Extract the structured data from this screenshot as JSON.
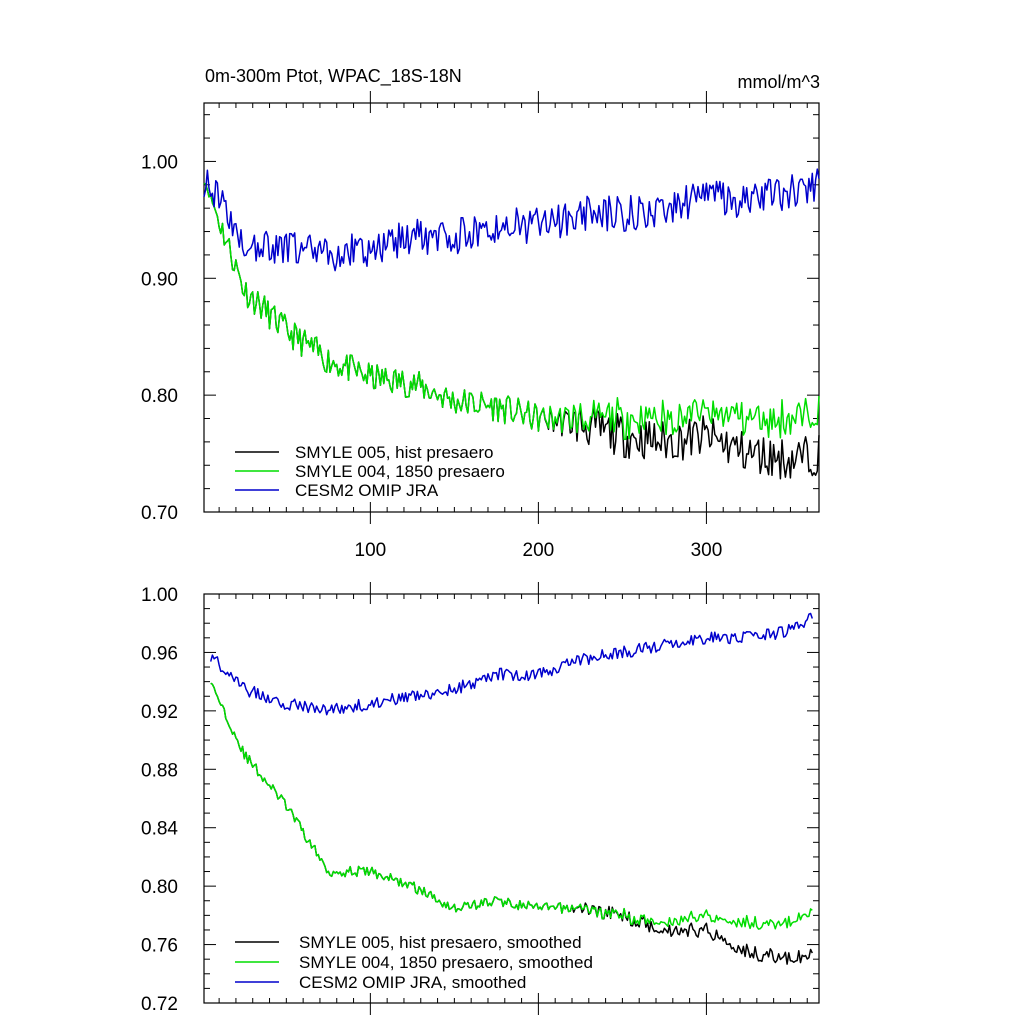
{
  "chart_data": [
    {
      "type": "line",
      "title": "0m-300m Ptot, WPAC_18S-18N",
      "units": "mmol/m^3",
      "xlim": [
        1,
        367
      ],
      "ylim": [
        0.7,
        1.05
      ],
      "xticks": [
        100,
        200,
        300
      ],
      "xtick_labels": [
        "100",
        "200",
        "300"
      ],
      "yticks": [
        0.7,
        0.8,
        0.9,
        1.0
      ],
      "ytick_labels": [
        "0.70",
        "0.80",
        "0.90",
        "1.00"
      ],
      "grid": false,
      "legend_position": "bottom-left",
      "series": [
        {
          "name": "SMYLE 005, hist presaero",
          "color": "#000000",
          "x": [
            1,
            25,
            50,
            75,
            100,
            125,
            150,
            175,
            200,
            225,
            250,
            275,
            300,
            325,
            350,
            367
          ],
          "y": [
            0.985,
            0.89,
            0.855,
            0.83,
            0.815,
            0.81,
            0.795,
            0.79,
            0.78,
            0.775,
            0.765,
            0.76,
            0.765,
            0.75,
            0.745,
            0.75
          ]
        },
        {
          "name": "SMYLE 004, 1850 presaero",
          "color": "#00dd00",
          "x": [
            1,
            25,
            50,
            75,
            100,
            125,
            150,
            175,
            200,
            225,
            250,
            275,
            300,
            325,
            350,
            367
          ],
          "y": [
            0.985,
            0.89,
            0.855,
            0.83,
            0.815,
            0.81,
            0.795,
            0.79,
            0.78,
            0.78,
            0.78,
            0.78,
            0.785,
            0.78,
            0.78,
            0.785
          ]
        },
        {
          "name": "CESM2 OMIP JRA",
          "color": "#0000cc",
          "x": [
            1,
            25,
            50,
            75,
            100,
            125,
            150,
            175,
            200,
            225,
            250,
            275,
            300,
            325,
            350,
            367
          ],
          "y": [
            0.985,
            0.93,
            0.925,
            0.92,
            0.925,
            0.935,
            0.935,
            0.945,
            0.945,
            0.955,
            0.955,
            0.96,
            0.97,
            0.965,
            0.975,
            0.98
          ]
        }
      ]
    },
    {
      "type": "line",
      "title": "",
      "xlim": [
        1,
        367
      ],
      "ylim": [
        0.72,
        1.0
      ],
      "xticks": [
        100,
        200,
        300
      ],
      "yticks": [
        0.72,
        0.76,
        0.8,
        0.84,
        0.88,
        0.92,
        0.96,
        1.0
      ],
      "ytick_labels": [
        "0.72",
        "0.76",
        "0.80",
        "0.84",
        "0.88",
        "0.92",
        "0.96",
        "1.00"
      ],
      "grid": false,
      "legend_position": "bottom-left",
      "series": [
        {
          "name": "SMYLE 005, hist presaero, smoothed",
          "color": "#000000",
          "x": [
            5,
            25,
            50,
            75,
            100,
            125,
            150,
            175,
            200,
            225,
            250,
            275,
            300,
            325,
            350,
            363
          ],
          "y": [
            0.94,
            0.89,
            0.855,
            0.81,
            0.81,
            0.8,
            0.785,
            0.79,
            0.785,
            0.785,
            0.78,
            0.77,
            0.77,
            0.755,
            0.75,
            0.752
          ]
        },
        {
          "name": "SMYLE 004, 1850 presaero, smoothed",
          "color": "#00dd00",
          "x": [
            5,
            25,
            50,
            75,
            100,
            125,
            150,
            175,
            200,
            225,
            250,
            275,
            300,
            325,
            350,
            363
          ],
          "y": [
            0.94,
            0.89,
            0.855,
            0.81,
            0.81,
            0.8,
            0.785,
            0.79,
            0.785,
            0.785,
            0.78,
            0.775,
            0.78,
            0.775,
            0.775,
            0.782
          ]
        },
        {
          "name": "CESM2 OMIP JRA, smoothed",
          "color": "#0000cc",
          "x": [
            5,
            25,
            50,
            75,
            100,
            125,
            150,
            175,
            200,
            225,
            250,
            275,
            300,
            325,
            350,
            363
          ],
          "y": [
            0.958,
            0.935,
            0.925,
            0.92,
            0.925,
            0.93,
            0.935,
            0.945,
            0.945,
            0.955,
            0.96,
            0.965,
            0.97,
            0.97,
            0.975,
            0.985
          ]
        }
      ]
    }
  ]
}
